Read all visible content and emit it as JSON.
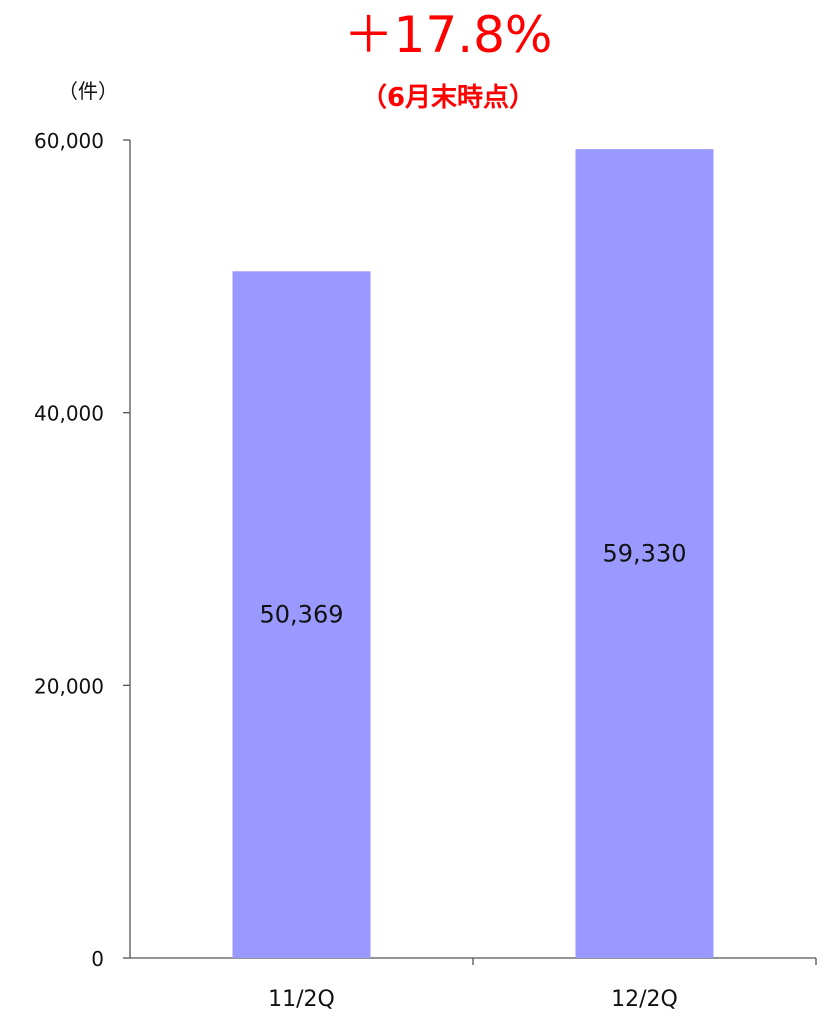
{
  "colors": {
    "bar": "#9999ff",
    "axis": "#555555",
    "text": "#111111",
    "highlight": "#ff0000"
  },
  "annotation": {
    "headline": "＋17.8%",
    "subline": "（6月末時点）"
  },
  "chart_data": {
    "type": "bar",
    "title": "",
    "unit_label": "（件）",
    "categories": [
      "11/2Q",
      "12/2Q"
    ],
    "values": [
      50369,
      59330
    ],
    "data_labels": [
      "50,369",
      "59,330"
    ],
    "ylim": [
      0,
      60000
    ],
    "y_ticks": [
      0,
      20000,
      40000,
      60000
    ],
    "y_tick_labels": [
      "0",
      "20,000",
      "40,000",
      "60,000"
    ],
    "grid": false,
    "legend": "none"
  }
}
